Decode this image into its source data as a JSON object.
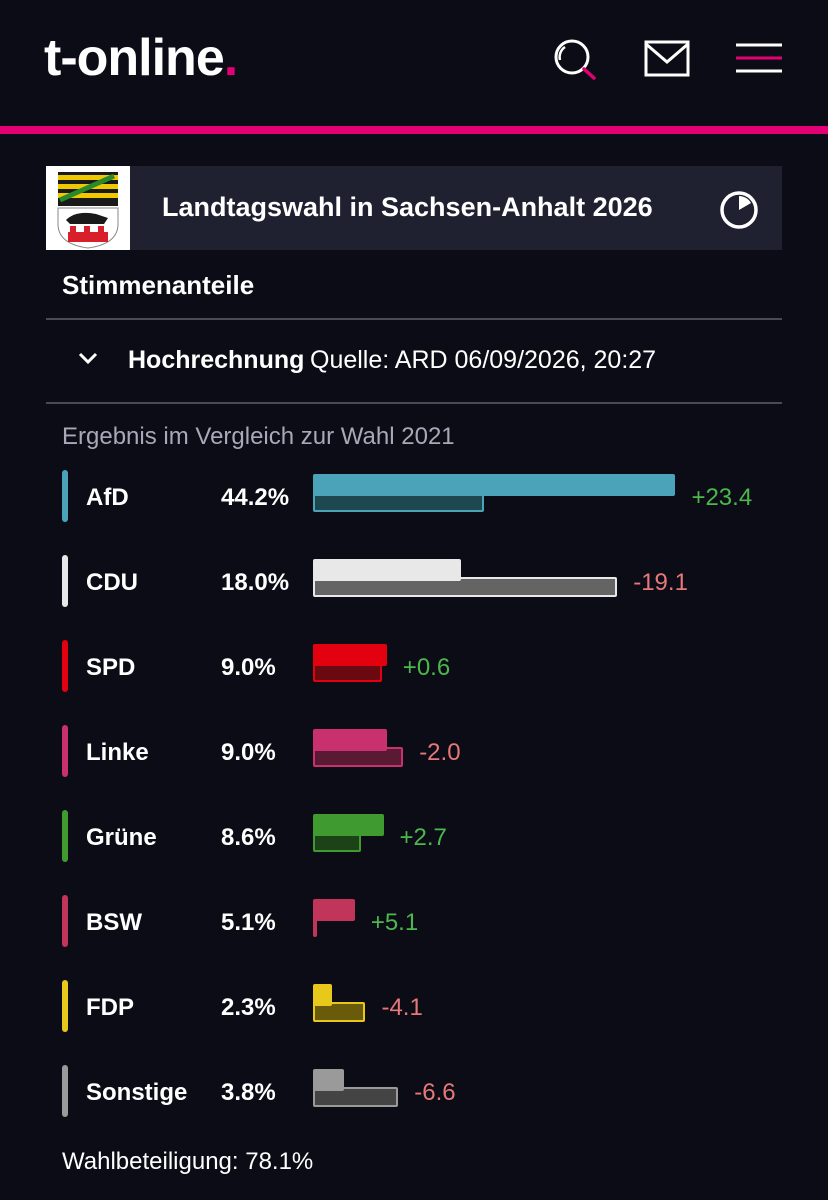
{
  "header": {
    "logo_text": "t-online",
    "logo_dot": ".",
    "icons": [
      "search-icon",
      "mail-icon",
      "menu-icon"
    ],
    "accent_color": "#e20074"
  },
  "election": {
    "title": "Landtagswahl in Sachsen-Anhalt 2026",
    "section_title": "Stimmenanteile",
    "projection_label": "Hochrechnung",
    "projection_source": "Quelle: ARD 06/09/2026, 20:27",
    "comparison_label": "Ergebnis im Vergleich zur Wahl 2021",
    "turnout": "Wahlbeteiligung: 78.1%"
  },
  "chart_data": {
    "type": "bar",
    "categories": [
      "AfD",
      "CDU",
      "SPD",
      "Linke",
      "Grüne",
      "BSW",
      "FDP",
      "Sonstige"
    ],
    "series": [
      {
        "values": [
          44.2,
          18.0,
          9.0,
          9.0,
          8.6,
          5.1,
          2.3,
          3.8
        ]
      },
      {
        "values": [
          20.8,
          37.1,
          8.4,
          11.0,
          5.9,
          0,
          6.4,
          10.4
        ]
      }
    ],
    "pct_labels": [
      "44.2%",
      "18.0%",
      "9.0%",
      "9.0%",
      "8.6%",
      "5.1%",
      "2.3%",
      "3.8%"
    ],
    "diff_labels": [
      "+23.4",
      "-19.1",
      "+0.6",
      "-2.0",
      "+2.7",
      "+5.1",
      "-4.1",
      "-6.6"
    ],
    "colors": [
      "#4aa3b8",
      "#e8e8e8",
      "#e3000f",
      "#c9306e",
      "#3f9a2f",
      "#c2355a",
      "#e8c81a",
      "#9a9a9a"
    ],
    "old_fill": [
      "#1d4850",
      "#646464",
      "#6a0a10",
      "#5a1a34",
      "#1c4218",
      "#56192a",
      "#6a5a0c",
      "#444444"
    ]
  }
}
